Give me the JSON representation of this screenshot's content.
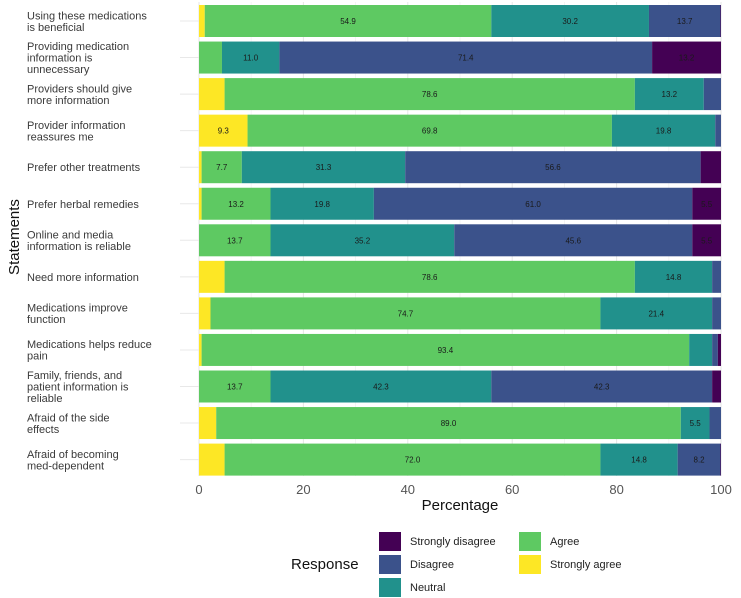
{
  "chart_data": {
    "type": "bar",
    "orientation": "horizontal",
    "stacked": true,
    "xlabel": "Percentage",
    "ylabel": "Statements",
    "xlim": [
      0,
      100
    ],
    "xticks": [
      0,
      20,
      40,
      60,
      80,
      100
    ],
    "grid": true,
    "legend_position": "bottom",
    "legend_title": "Response",
    "categories": [
      "Using these medications is beneficial",
      "Providing medication information is unnecessary",
      "Providers should give more information",
      "Provider information reassures me",
      "Prefer other treatments",
      "Prefer herbal remedies",
      "Online and media information is reliable",
      "Need more information",
      "Medications improve function",
      "Medications helps reduce pain",
      "Family, friends, and patient information is reliable",
      "Afraid of the side effects",
      "Afraid of becoming med-dependent"
    ],
    "label_lines": [
      [
        "Using these medications",
        "is beneficial"
      ],
      [
        "Providing medication",
        "information is",
        "unnecessary"
      ],
      [
        "Providers should give",
        "more information"
      ],
      [
        "Provider information",
        "reassures me"
      ],
      [
        "Prefer other treatments"
      ],
      [
        "Prefer herbal remedies"
      ],
      [
        "Online and media",
        "information is reliable"
      ],
      [
        "Need more information"
      ],
      [
        "Medications improve",
        "function"
      ],
      [
        "Medications helps reduce",
        "pain"
      ],
      [
        "Family, friends, and",
        "patient information is",
        "reliable"
      ],
      [
        "Afraid of the side",
        "effects"
      ],
      [
        "Afraid of becoming",
        "med-dependent"
      ]
    ],
    "series": [
      {
        "name": "Strongly agree",
        "color": "#fde725",
        "values": [
          1.1,
          0.0,
          4.9,
          9.3,
          0.5,
          0.5,
          0.0,
          4.9,
          2.2,
          0.5,
          0.0,
          3.3,
          4.9
        ],
        "labels": [
          "",
          "",
          "",
          "9.3",
          "",
          "",
          "",
          "",
          "",
          "",
          "",
          "",
          ""
        ]
      },
      {
        "name": "Agree",
        "color": "#5ec962",
        "values": [
          54.9,
          4.4,
          78.6,
          69.8,
          7.7,
          13.2,
          13.7,
          78.6,
          74.7,
          93.4,
          13.7,
          89.0,
          72.0
        ],
        "labels": [
          "54.9",
          "",
          "78.6",
          "69.8",
          "7.7",
          "13.2",
          "13.7",
          "78.6",
          "74.7",
          "93.4",
          "13.7",
          "89.0",
          "72.0"
        ]
      },
      {
        "name": "Neutral",
        "color": "#21918c",
        "values": [
          30.2,
          11.0,
          13.2,
          19.8,
          31.3,
          19.8,
          35.2,
          14.8,
          21.4,
          4.4,
          42.3,
          5.5,
          14.8
        ],
        "labels": [
          "30.2",
          "11.0",
          "13.2",
          "19.8",
          "31.3",
          "19.8",
          "35.2",
          "14.8",
          "21.4",
          "",
          "42.3",
          "5.5",
          "14.8"
        ]
      },
      {
        "name": "Disagree",
        "color": "#3b528b",
        "values": [
          13.7,
          71.4,
          3.3,
          1.1,
          56.6,
          61.0,
          45.6,
          1.7,
          1.7,
          1.1,
          42.3,
          2.2,
          8.2
        ],
        "labels": [
          "13.7",
          "71.4",
          "",
          "",
          "56.6",
          "61.0",
          "45.6",
          "",
          "",
          "",
          "42.3",
          "",
          "8.2"
        ]
      },
      {
        "name": "Strongly disagree",
        "color": "#440154",
        "values": [
          0.1,
          13.2,
          0.0,
          0.0,
          3.9,
          5.5,
          5.5,
          0.0,
          0.0,
          0.6,
          1.7,
          0.0,
          0.1
        ],
        "labels": [
          "",
          "13.2",
          "",
          "",
          "",
          "5.5",
          "5.5",
          "",
          "",
          "",
          "",
          "",
          ""
        ]
      }
    ],
    "legend_order": [
      "Strongly disagree",
      "Agree",
      "Disagree",
      "Strongly agree",
      "Neutral"
    ]
  }
}
